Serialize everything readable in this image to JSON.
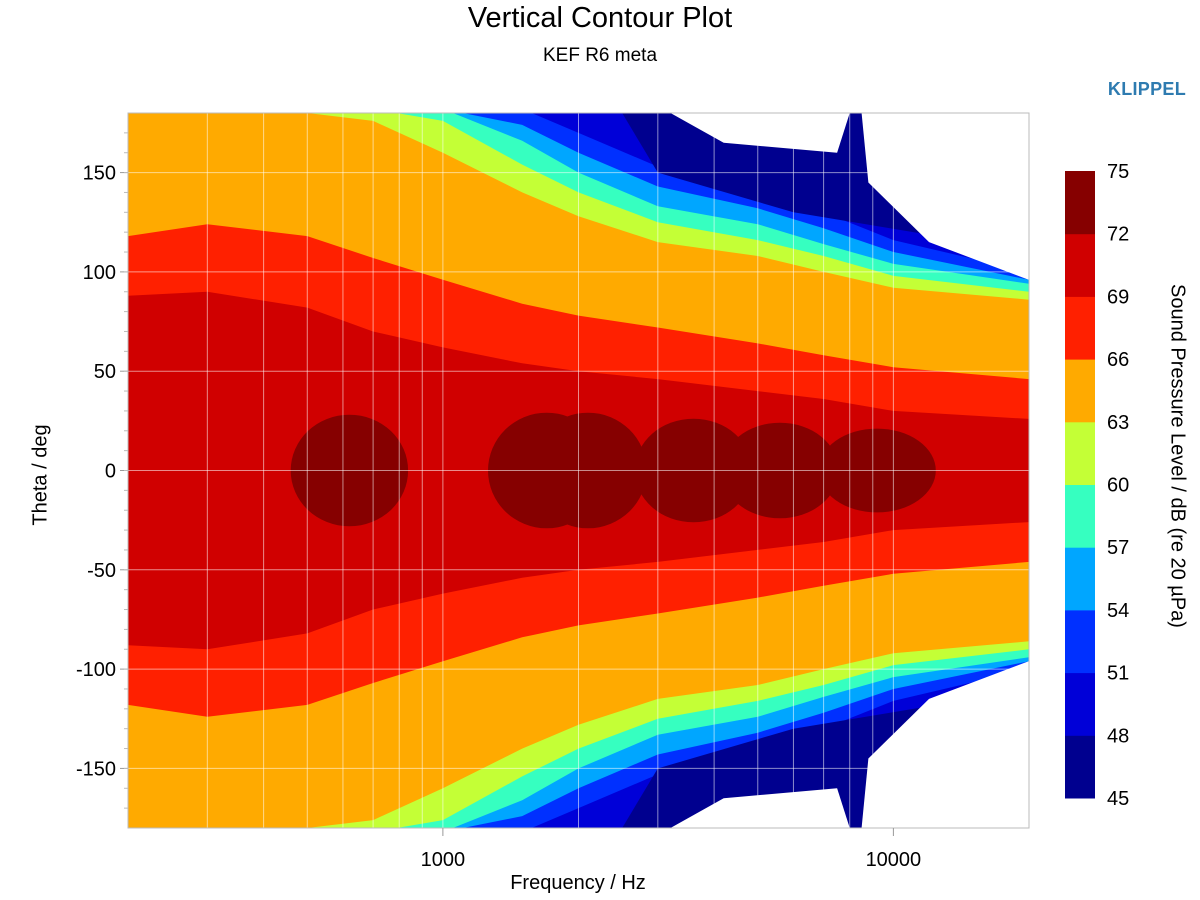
{
  "chart_data": {
    "type": "heatmap",
    "title": "Vertical Contour Plot",
    "subtitle": "KEF R6 meta",
    "brand": "KLIPPEL",
    "xlabel": "Frequency / Hz",
    "ylabel": "Theta / deg",
    "colorbar_label": "Sound Pressure Level / dB (re 20 µPa)",
    "x_scale": "log",
    "xlim": [
      200,
      20000
    ],
    "ylim": [
      -180,
      180
    ],
    "x_ticks": [
      1000,
      10000
    ],
    "x_tick_labels": [
      "1000",
      "10000"
    ],
    "y_ticks": [
      150,
      100,
      50,
      0,
      -50,
      -100,
      -150
    ],
    "y_tick_labels": [
      "150",
      "100",
      "50",
      "0",
      "-50",
      "-100",
      "-150"
    ],
    "grid": true,
    "legend": "colorbar, right",
    "levels": [
      45,
      48,
      51,
      54,
      57,
      60,
      63,
      66,
      69,
      72,
      75
    ],
    "level_labels": [
      "75",
      "72",
      "69",
      "66",
      "63",
      "60",
      "57",
      "54",
      "51",
      "48",
      "45"
    ],
    "colors": [
      "#00008f",
      "#0000d8",
      "#0030ff",
      "#00a6ff",
      "#36ffc0",
      "#c4ff36",
      "#ffaa00",
      "#ff2000",
      "#d00000",
      "#860000"
    ],
    "contour_edges_deg": [
      {
        "level": 63,
        "theta": [
          180,
          180,
          180,
          176,
          160,
          140,
          128,
          115,
          108,
          100,
          92,
          86
        ]
      },
      {
        "level": 66,
        "theta": [
          118,
          124,
          118,
          107,
          96,
          84,
          78,
          72,
          64,
          58,
          52,
          46
        ]
      },
      {
        "level": 69,
        "theta": [
          88,
          90,
          82,
          70,
          62,
          54,
          50,
          46,
          40,
          36,
          30,
          26
        ]
      },
      {
        "level": 72,
        "theta": [
          0,
          0,
          10,
          20,
          14,
          20,
          20,
          14,
          16,
          14,
          10,
          4
        ]
      }
    ],
    "contour_freqs_hz": [
      200,
      300,
      500,
      700,
      1000,
      1500,
      2000,
      3000,
      5000,
      7000,
      10000,
      20000
    ]
  }
}
